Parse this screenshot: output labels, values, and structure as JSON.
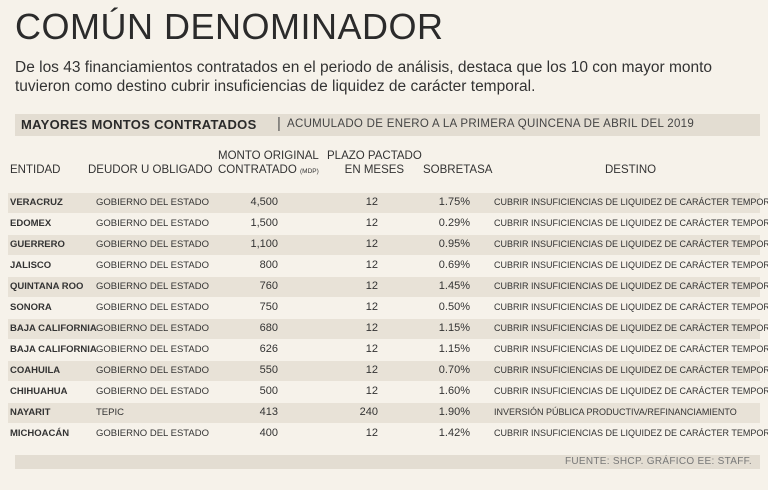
{
  "title": "COMÚN DENOMINADOR",
  "subtitle": "De los 43 financiamientos contratados en el periodo de análisis, destaca que los 10 con mayor monto tuvieron como destino cubrir insuficiencias de liquidez de carácter temporal.",
  "bar": {
    "strong": "MAYORES MONTOS CONTRATADOS",
    "separator": "|",
    "sub": "ACUMULADO DE ENERO A LA PRIMERA QUINCENA DE ABRIL DEL 2019"
  },
  "headers": {
    "entidad": "ENTIDAD",
    "deudor": "DEUDOR U OBLIGADO",
    "monto_line1": "MONTO ORIGINAL",
    "monto_line2": "CONTRATADO",
    "monto_unit": "(MDP)",
    "plazo_line1": "PLAZO PACTADO",
    "plazo_line2": "EN MESES",
    "sobretasa": "SOBRETASA",
    "destino": "DESTINO"
  },
  "rows": [
    {
      "entidad": "VERACRUZ",
      "deudor": "GOBIERNO DEL ESTADO",
      "monto": "4,500",
      "plazo": "12",
      "sobretasa": "1.75%",
      "destino": "CUBRIR INSUFICIENCIAS DE LIQUIDEZ DE CARÁCTER TEMPORAL"
    },
    {
      "entidad": "EDOMEX",
      "deudor": "GOBIERNO DEL ESTADO",
      "monto": "1,500",
      "plazo": "12",
      "sobretasa": "0.29%",
      "destino": "CUBRIR INSUFICIENCIAS DE LIQUIDEZ DE CARÁCTER TEMPORAL"
    },
    {
      "entidad": "GUERRERO",
      "deudor": "GOBIERNO DEL ESTADO",
      "monto": "1,100",
      "plazo": "12",
      "sobretasa": "0.95%",
      "destino": "CUBRIR INSUFICIENCIAS DE LIQUIDEZ DE CARÁCTER TEMPORAL"
    },
    {
      "entidad": "JALISCO",
      "deudor": "GOBIERNO DEL ESTADO",
      "monto": "800",
      "plazo": "12",
      "sobretasa": "0.69%",
      "destino": "CUBRIR INSUFICIENCIAS DE LIQUIDEZ DE CARÁCTER TEMPORAL"
    },
    {
      "entidad": "QUINTANA ROO",
      "deudor": "GOBIERNO DEL ESTADO",
      "monto": "760",
      "plazo": "12",
      "sobretasa": "1.45%",
      "destino": "CUBRIR INSUFICIENCIAS DE LIQUIDEZ DE CARÁCTER TEMPORAL"
    },
    {
      "entidad": "SONORA",
      "deudor": "GOBIERNO DEL ESTADO",
      "monto": "750",
      "plazo": "12",
      "sobretasa": "0.50%",
      "destino": "CUBRIR INSUFICIENCIAS DE LIQUIDEZ DE CARÁCTER TEMPORAL"
    },
    {
      "entidad": "BAJA CALIFORNIA",
      "deudor": "GOBIERNO DEL ESTADO",
      "monto": "680",
      "plazo": "12",
      "sobretasa": "1.15%",
      "destino": "CUBRIR INSUFICIENCIAS DE LIQUIDEZ DE CARÁCTER TEMPORAL"
    },
    {
      "entidad": "BAJA CALIFORNIA",
      "deudor": "GOBIERNO DEL ESTADO",
      "monto": "626",
      "plazo": "12",
      "sobretasa": "1.15%",
      "destino": "CUBRIR INSUFICIENCIAS DE LIQUIDEZ DE CARÁCTER TEMPORAL"
    },
    {
      "entidad": "COAHUILA",
      "deudor": "GOBIERNO DEL ESTADO",
      "monto": "550",
      "plazo": "12",
      "sobretasa": "0.70%",
      "destino": "CUBRIR INSUFICIENCIAS DE LIQUIDEZ DE CARÁCTER TEMPORAL"
    },
    {
      "entidad": "CHIHUAHUA",
      "deudor": "GOBIERNO DEL ESTADO",
      "monto": "500",
      "plazo": "12",
      "sobretasa": "1.60%",
      "destino": "CUBRIR INSUFICIENCIAS DE LIQUIDEZ DE CARÁCTER TEMPORAL"
    },
    {
      "entidad": "NAYARIT",
      "deudor": "TEPIC",
      "monto": "413",
      "plazo": "240",
      "sobretasa": "1.90%",
      "destino": "INVERSIÓN PÚBLICA PRODUCTIVA/REFINANCIAMIENTO"
    },
    {
      "entidad": "MICHOACÁN",
      "deudor": "GOBIERNO DEL ESTADO",
      "monto": "400",
      "plazo": "12",
      "sobretasa": "1.42%",
      "destino": "CUBRIR INSUFICIENCIAS DE LIQUIDEZ DE CARÁCTER TEMPORAL"
    }
  ],
  "footer": "FUENTE: SHCP. GRÁFICO EE: STAFF."
}
